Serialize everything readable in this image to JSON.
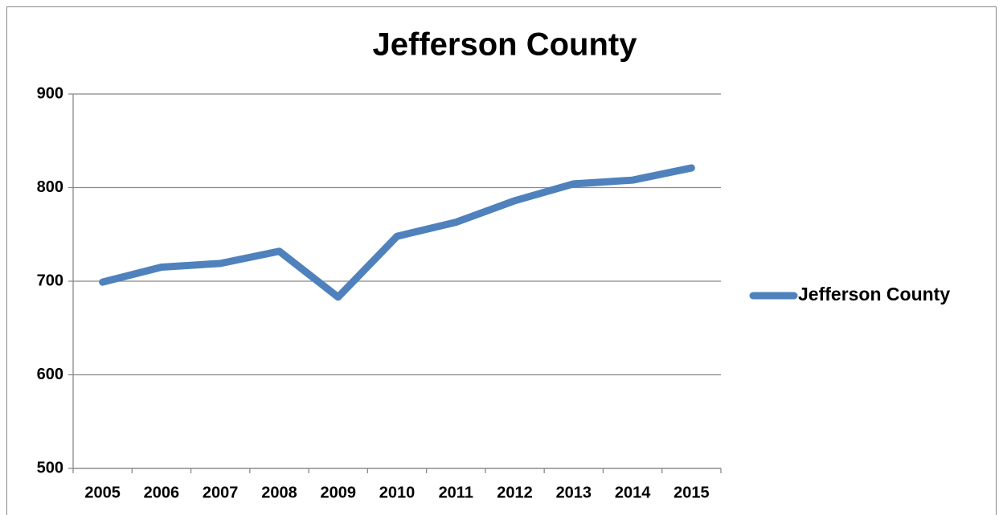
{
  "chart_data": {
    "type": "line",
    "title": "Jefferson County",
    "categories": [
      "2005",
      "2006",
      "2007",
      "2008",
      "2009",
      "2010",
      "2011",
      "2012",
      "2013",
      "2014",
      "2015"
    ],
    "series": [
      {
        "name": "Jefferson County",
        "color": "#4f81bd",
        "values": [
          699,
          715,
          719,
          732,
          683,
          748,
          763,
          786,
          804,
          808,
          821
        ]
      }
    ],
    "ylim": [
      500,
      900
    ],
    "yticks": [
      500,
      600,
      700,
      800,
      900
    ],
    "grid": true,
    "legend": "right"
  }
}
